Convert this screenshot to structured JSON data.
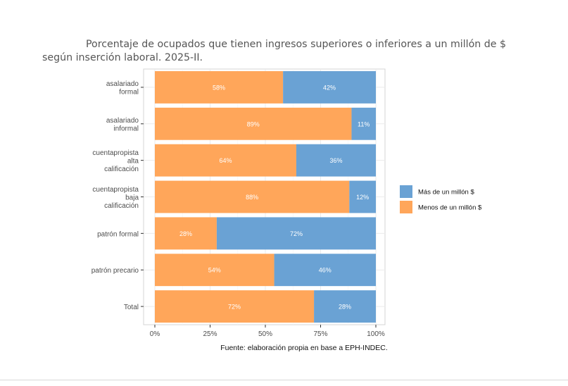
{
  "caption": "Porcentaje de ocupados que tienen ingresos superiores o inferiores a un millón de $ según inserción laboral. 2025-II.",
  "chart_data": {
    "type": "bar",
    "orientation": "horizontal",
    "stacked": true,
    "categories": [
      [
        "asalariado",
        "formal"
      ],
      [
        "asalariado",
        "informal"
      ],
      [
        "cuentapropista",
        "alta",
        "calificación"
      ],
      [
        "cuentapropista",
        "baja",
        "calificación"
      ],
      [
        "patrón formal"
      ],
      [
        "patrón precario"
      ],
      [
        "Total"
      ]
    ],
    "series": [
      {
        "name": "Menos de un millón $",
        "color": "#ffa65a",
        "values": [
          58,
          89,
          64,
          88,
          28,
          54,
          72
        ],
        "labels": [
          "58%",
          "89%",
          "64%",
          "88%",
          "28%",
          "54%",
          "72%"
        ]
      },
      {
        "name": "Más de un millón $",
        "color": "#6aa2d4",
        "values": [
          42,
          11,
          36,
          12,
          72,
          46,
          28
        ],
        "labels": [
          "42%",
          "11%",
          "36%",
          "12%",
          "72%",
          "46%",
          "28%"
        ]
      }
    ],
    "xlim": [
      0,
      100
    ],
    "xticks": [
      0,
      25,
      50,
      75,
      100
    ],
    "xtick_labels": [
      "0%",
      "25%",
      "50%",
      "75%",
      "100%"
    ],
    "legend": {
      "position": "right",
      "entries": [
        {
          "label": "Más de un millón $",
          "color": "#6aa2d4"
        },
        {
          "label": "Menos de un millón $",
          "color": "#ffa65a"
        }
      ]
    },
    "grid": true,
    "source_note": "Fuente: elaboración propia en base a EPH-INDEC."
  }
}
